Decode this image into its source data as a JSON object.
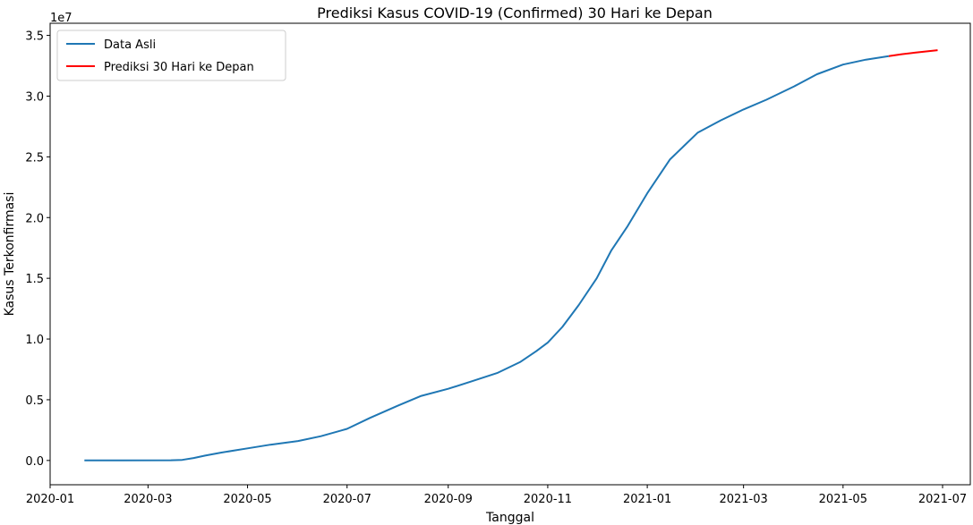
{
  "chart_data": {
    "type": "line",
    "title": "Prediksi Kasus COVID-19 (Confirmed) 30 Hari ke Depan",
    "xlabel": "Tanggal",
    "ylabel": "Kasus Terkonfirmasi",
    "y_offset_label": "1e7",
    "y_scale": 10000000,
    "xlim": [
      "2020-01-01",
      "2021-07-18"
    ],
    "ylim": [
      -2000000,
      36000000
    ],
    "x_ticks": [
      "2020-01",
      "2020-03",
      "2020-05",
      "2020-07",
      "2020-09",
      "2020-11",
      "2021-01",
      "2021-03",
      "2021-05",
      "2021-07"
    ],
    "y_ticks": [
      "0.0",
      "0.5",
      "1.0",
      "1.5",
      "2.0",
      "2.5",
      "3.0",
      "3.5"
    ],
    "grid": false,
    "legend_position": "top-left",
    "series": [
      {
        "name": "Data Asli",
        "color": "#1f77b4",
        "points": [
          [
            "2020-01-22",
            0
          ],
          [
            "2020-02-15",
            10000
          ],
          [
            "2020-03-15",
            20000
          ],
          [
            "2020-03-22",
            50000
          ],
          [
            "2020-03-29",
            200000
          ],
          [
            "2020-04-05",
            400000
          ],
          [
            "2020-04-15",
            650000
          ],
          [
            "2020-05-01",
            1000000
          ],
          [
            "2020-05-15",
            1300000
          ],
          [
            "2020-06-01",
            1600000
          ],
          [
            "2020-06-15",
            2000000
          ],
          [
            "2020-07-01",
            2600000
          ],
          [
            "2020-07-15",
            3500000
          ],
          [
            "2020-08-01",
            4500000
          ],
          [
            "2020-08-15",
            5300000
          ],
          [
            "2020-09-01",
            5900000
          ],
          [
            "2020-09-15",
            6500000
          ],
          [
            "2020-10-01",
            7200000
          ],
          [
            "2020-10-15",
            8100000
          ],
          [
            "2020-10-25",
            9000000
          ],
          [
            "2020-11-01",
            9700000
          ],
          [
            "2020-11-10",
            11000000
          ],
          [
            "2020-11-20",
            12800000
          ],
          [
            "2020-12-01",
            15000000
          ],
          [
            "2020-12-10",
            17300000
          ],
          [
            "2020-12-20",
            19300000
          ],
          [
            "2021-01-01",
            22000000
          ],
          [
            "2021-01-15",
            24800000
          ],
          [
            "2021-02-01",
            27000000
          ],
          [
            "2021-02-15",
            28000000
          ],
          [
            "2021-03-01",
            28900000
          ],
          [
            "2021-03-15",
            29700000
          ],
          [
            "2021-04-01",
            30800000
          ],
          [
            "2021-04-15",
            31800000
          ],
          [
            "2021-05-01",
            32600000
          ],
          [
            "2021-05-15",
            33000000
          ],
          [
            "2021-05-29",
            33300000
          ]
        ]
      },
      {
        "name": "Prediksi 30 Hari ke Depan",
        "color": "#ff0000",
        "points": [
          [
            "2021-05-29",
            33300000
          ],
          [
            "2021-06-06",
            33450000
          ],
          [
            "2021-06-14",
            33580000
          ],
          [
            "2021-06-21",
            33680000
          ],
          [
            "2021-06-28",
            33780000
          ]
        ]
      }
    ]
  }
}
